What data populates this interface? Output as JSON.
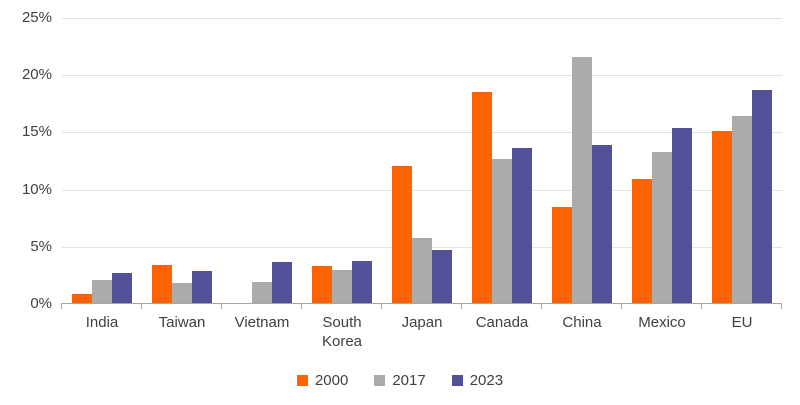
{
  "chart_data": {
    "type": "bar",
    "title": "",
    "categories": [
      "India",
      "Taiwan",
      "Vietnam",
      "South Korea",
      "Japan",
      "Canada",
      "China",
      "Mexico",
      "EU"
    ],
    "series": [
      {
        "name": "2000",
        "color": "#FF6200",
        "values": [
          0.9,
          3.4,
          0,
          3.3,
          12.1,
          18.5,
          8.5,
          10.9,
          15.1
        ]
      },
      {
        "name": "2017",
        "color": "#ABABAB",
        "values": [
          2.1,
          1.8,
          1.9,
          3.0,
          5.8,
          12.7,
          21.6,
          13.3,
          16.4
        ]
      },
      {
        "name": "2023",
        "color": "#525199",
        "values": [
          2.7,
          2.9,
          3.7,
          3.8,
          4.7,
          13.6,
          13.9,
          15.4,
          18.7
        ]
      }
    ],
    "y_axis": {
      "min": 0,
      "max": 25,
      "step": 5,
      "tick_labels_top_to_bottom": [
        "25%",
        "20%",
        "15%",
        "10%",
        "5%",
        "0%"
      ]
    },
    "grid": true,
    "legend_position": "bottom",
    "plot_colors": {
      "gridline": "#e2e2e2",
      "axis": "#a6a6a6",
      "text": "#404040",
      "background": "#ffffff"
    }
  }
}
